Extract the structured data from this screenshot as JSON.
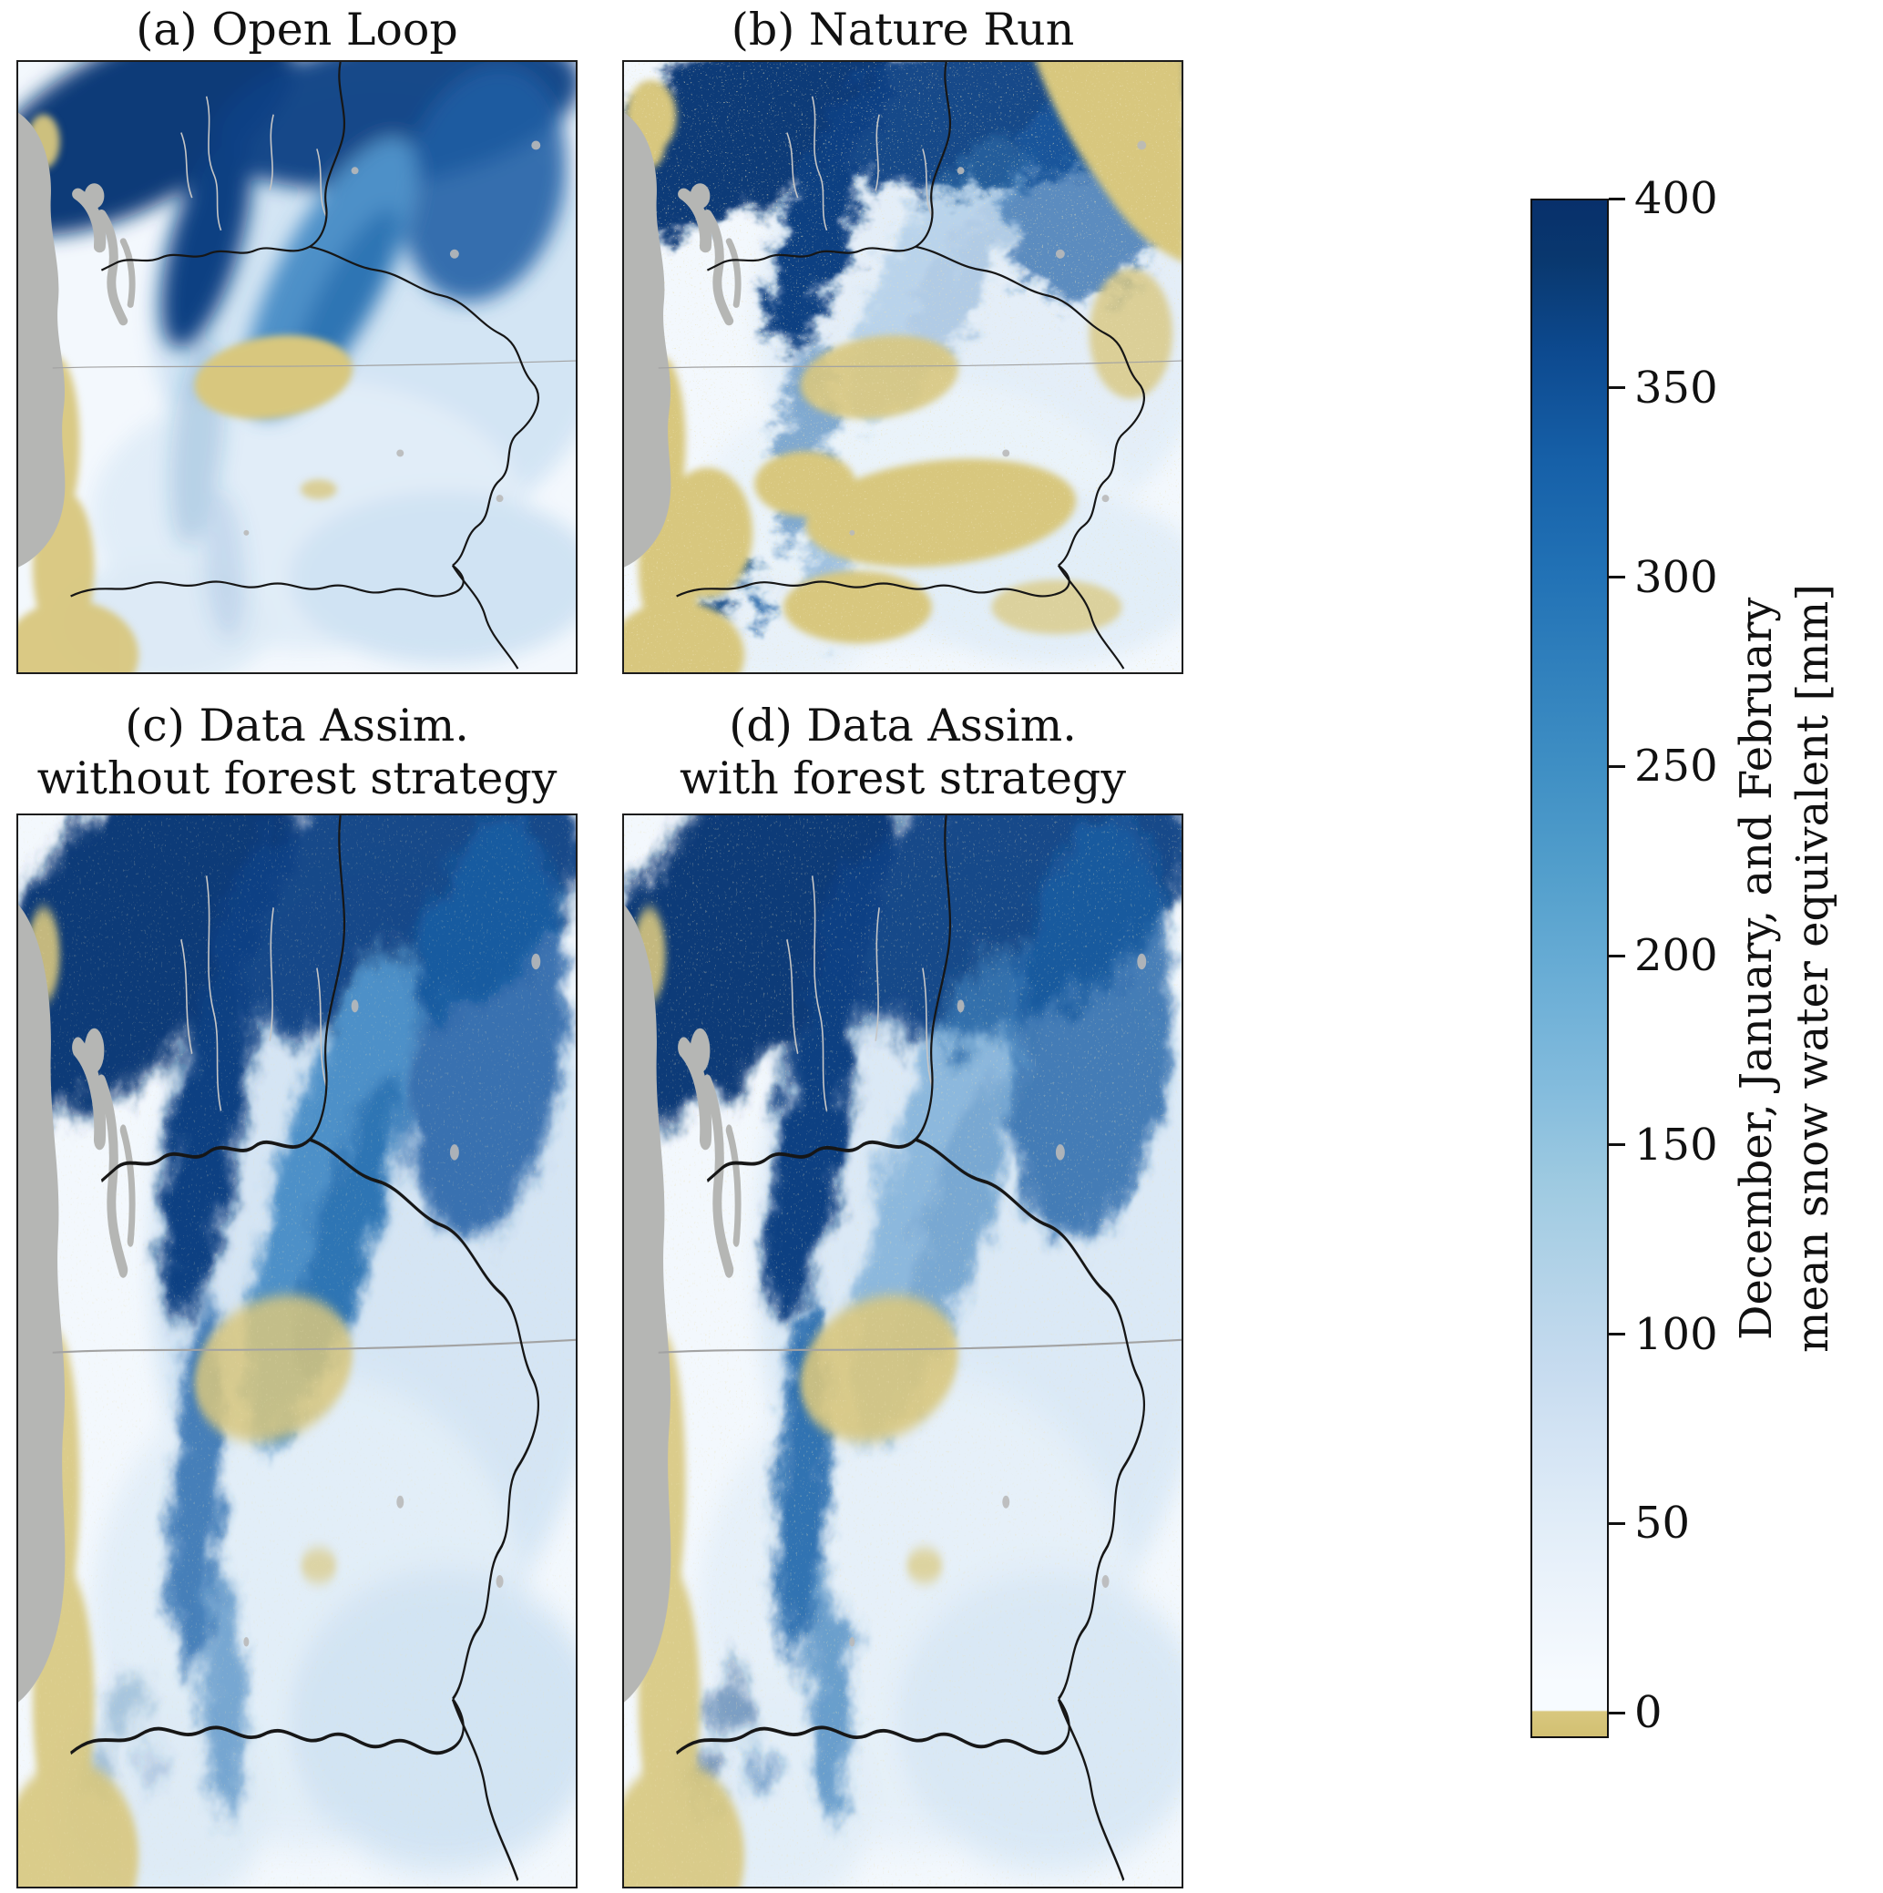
{
  "figure": {
    "panels": [
      {
        "id": "a",
        "title": "(a) Open Loop",
        "subtitle": ""
      },
      {
        "id": "b",
        "title": "(b) Nature Run",
        "subtitle": ""
      },
      {
        "id": "c",
        "title": "(c) Data Assim.",
        "subtitle": "without forest strategy"
      },
      {
        "id": "d",
        "title": "(d) Data Assim.",
        "subtitle": "with forest strategy"
      }
    ],
    "colorbar": {
      "min": 0,
      "max": 400,
      "ticks": [
        400,
        350,
        300,
        250,
        200,
        150,
        100,
        50,
        0
      ],
      "label_line1": "December, January, and February",
      "label_line2": "mean snow water equivalent [mm]"
    },
    "colors": {
      "snow_high": "#08306b",
      "snow_mid": "#6baed6",
      "snow_low": "#f7fbff",
      "no_snow_tan": "#d8c77e",
      "no_data_gray": "#b5b6b4"
    }
  },
  "chart_data": {
    "type": "heatmap",
    "layout": {
      "grid": "2x2 map panels",
      "colorbar_position": "right",
      "legend": "shared vertical colorbar"
    },
    "panels": [
      {
        "label": "(a) Open Loop"
      },
      {
        "label": "(b) Nature Run"
      },
      {
        "label": "(c) Data Assim. without forest strategy"
      },
      {
        "label": "(d) Data Assim. with forest strategy"
      }
    ],
    "colorbar": {
      "label": "December, January, and February mean snow water equivalent [mm]",
      "range": [
        0,
        400
      ],
      "ticks": [
        0,
        50,
        100,
        150,
        200,
        250,
        300,
        350,
        400
      ],
      "colormap": "white-to-dark-blue (Blues) for increasing SWE, tan band at ~0 mm, gray for water/no data"
    }
  }
}
